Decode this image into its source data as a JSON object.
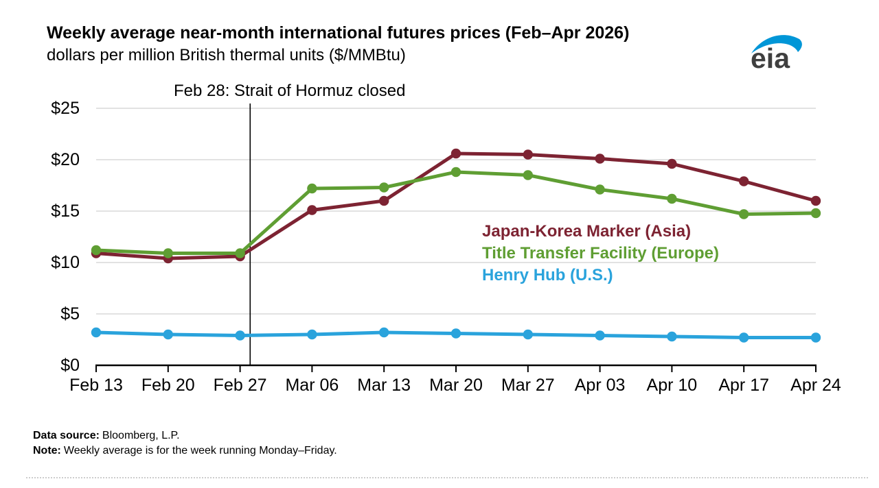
{
  "header": {
    "title": "Weekly average near-month international futures prices (Feb–Apr 2026)",
    "subtitle": "dollars per million British thermal units ($/MMBtu)",
    "logo_text": "eia",
    "logo_swoosh_color": "#0096d7",
    "logo_text_color": "#3f3f3f"
  },
  "chart_data": {
    "type": "line",
    "title": "Weekly average near-month international futures prices (Feb–Apr 2026)",
    "ylabel": "dollars per million British thermal units ($/MMBtu)",
    "x": [
      "Feb 13",
      "Feb 20",
      "Feb 27",
      "Mar 06",
      "Mar 13",
      "Mar 20",
      "Mar 27",
      "Apr 03",
      "Apr 10",
      "Apr 17",
      "Apr 24"
    ],
    "series": [
      {
        "name": "Japan-Korea Marker (Asia)",
        "color": "#7d2332",
        "values": [
          10.9,
          10.4,
          10.6,
          15.1,
          16.0,
          20.6,
          20.5,
          20.1,
          19.6,
          17.9,
          16.0
        ]
      },
      {
        "name": "Title Transfer Facility (Europe)",
        "color": "#5f9e33",
        "values": [
          11.2,
          10.9,
          10.9,
          17.2,
          17.3,
          18.8,
          18.5,
          17.1,
          16.2,
          14.7,
          14.8
        ]
      },
      {
        "name": "Henry Hub (U.S.)",
        "color": "#2aa3dc",
        "values": [
          3.2,
          3.0,
          2.9,
          3.0,
          3.2,
          3.1,
          3.0,
          2.9,
          2.8,
          2.7,
          2.7
        ]
      }
    ],
    "ylim": [
      0,
      25
    ],
    "y_ticks": [
      {
        "value": 0,
        "label": "$0"
      },
      {
        "value": 5,
        "label": "$5"
      },
      {
        "value": 10,
        "label": "$10"
      },
      {
        "value": 15,
        "label": "$15"
      },
      {
        "value": 20,
        "label": "$20"
      },
      {
        "value": 25,
        "label": "$25"
      }
    ],
    "grid": true,
    "gridline_color": "#d8d8d8",
    "legend_position": "inside-right",
    "event_line": {
      "label": "Feb 28: Strait of Hormuz closed",
      "week_index": 2.14
    }
  },
  "footer": {
    "source_label": "Data source:",
    "source_value": "Bloomberg, L.P.",
    "note_label": "Note:",
    "note_value": "Weekly average is for the week running Monday–Friday."
  }
}
